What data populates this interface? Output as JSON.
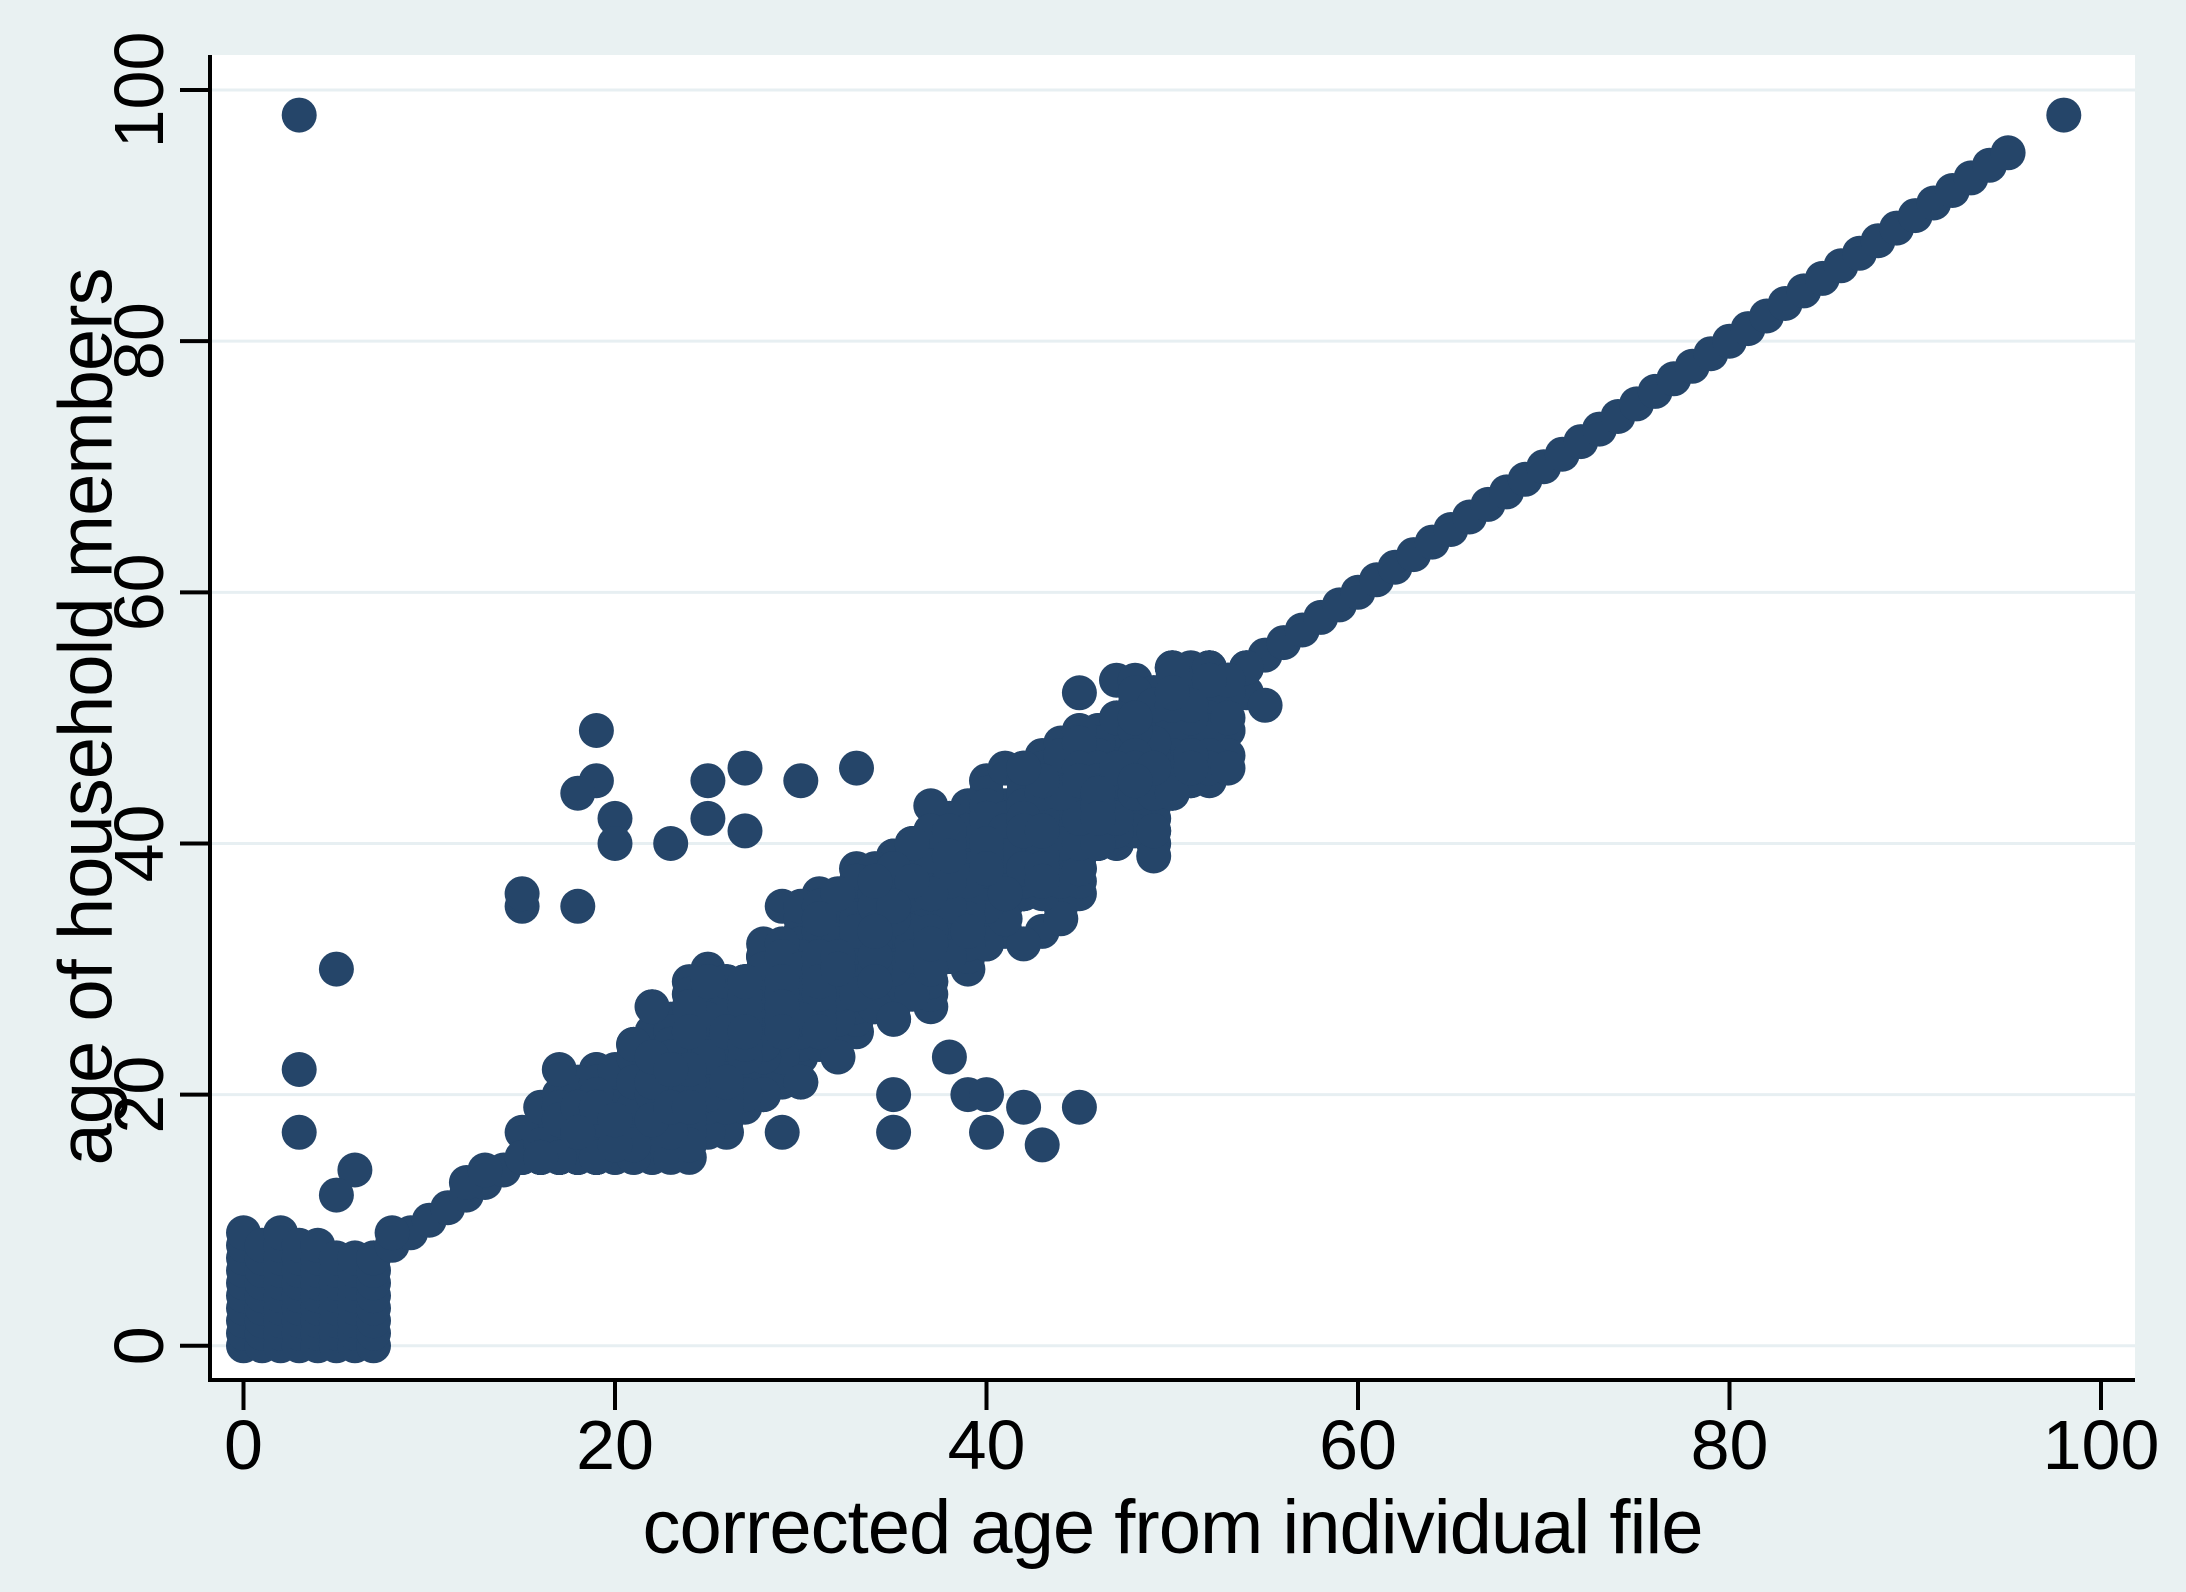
{
  "chart_data": {
    "type": "scatter",
    "title": "",
    "xlabel": "corrected age from individual file",
    "ylabel": "age of household members",
    "xlim": [
      -2,
      102
    ],
    "ylim": [
      -3,
      103
    ],
    "x_ticks": [
      0,
      20,
      40,
      60,
      80,
      100
    ],
    "y_ticks": [
      0,
      20,
      40,
      60,
      80,
      100
    ],
    "grid": "horizontal",
    "legend": "none",
    "colors": {
      "background": "#e9f1f2",
      "plot_background": "#ffffff",
      "axis_color": "#000000",
      "grid_color": "#e7eff2",
      "tick_label_color": "#000000",
      "marker_color": "#254569"
    },
    "marker": {
      "shape": "circle",
      "radius_px": 17.5
    },
    "series": {
      "identity_line": {
        "x_start": 7,
        "x_end": 95,
        "step": 1
      },
      "origin_cluster_columns": [
        [
          0,
          9
        ],
        [
          1,
          8
        ],
        [
          2,
          9
        ],
        [
          3,
          8
        ],
        [
          4,
          8
        ],
        [
          5,
          7
        ],
        [
          6,
          7
        ],
        [
          7,
          7
        ]
      ],
      "isolated_points": [
        [
          3,
          98
        ],
        [
          98,
          98
        ],
        [
          5,
          30
        ],
        [
          3,
          22
        ],
        [
          3,
          17
        ],
        [
          6,
          14
        ],
        [
          5,
          12
        ],
        [
          8,
          9
        ],
        [
          12,
          13
        ],
        [
          13,
          14
        ],
        [
          15,
          35
        ],
        [
          15,
          36
        ],
        [
          18,
          35
        ],
        [
          19,
          49
        ],
        [
          19,
          45
        ],
        [
          18,
          44
        ],
        [
          20,
          42
        ],
        [
          20,
          40
        ],
        [
          23,
          40
        ],
        [
          25,
          45
        ],
        [
          25,
          42
        ],
        [
          27,
          46
        ],
        [
          27,
          41
        ],
        [
          30,
          45
        ],
        [
          33,
          46
        ],
        [
          45,
          52
        ],
        [
          47,
          53
        ],
        [
          48,
          53
        ],
        [
          50,
          54
        ],
        [
          52,
          54
        ],
        [
          29,
          17
        ],
        [
          35,
          20
        ],
        [
          35,
          17
        ],
        [
          38,
          23
        ],
        [
          39,
          20
        ],
        [
          40,
          20
        ],
        [
          40,
          17
        ],
        [
          42,
          19
        ],
        [
          43,
          16
        ],
        [
          45,
          19
        ]
      ],
      "cloud": {
        "count": 2300,
        "seed": 7,
        "x_min": 14,
        "x_max": 55,
        "noise_mean": -2,
        "noise_spread": 4.6,
        "y_min": 15,
        "y_cap_above_x": 8,
        "y_max": 54,
        "round_to_int": true
      }
    }
  }
}
